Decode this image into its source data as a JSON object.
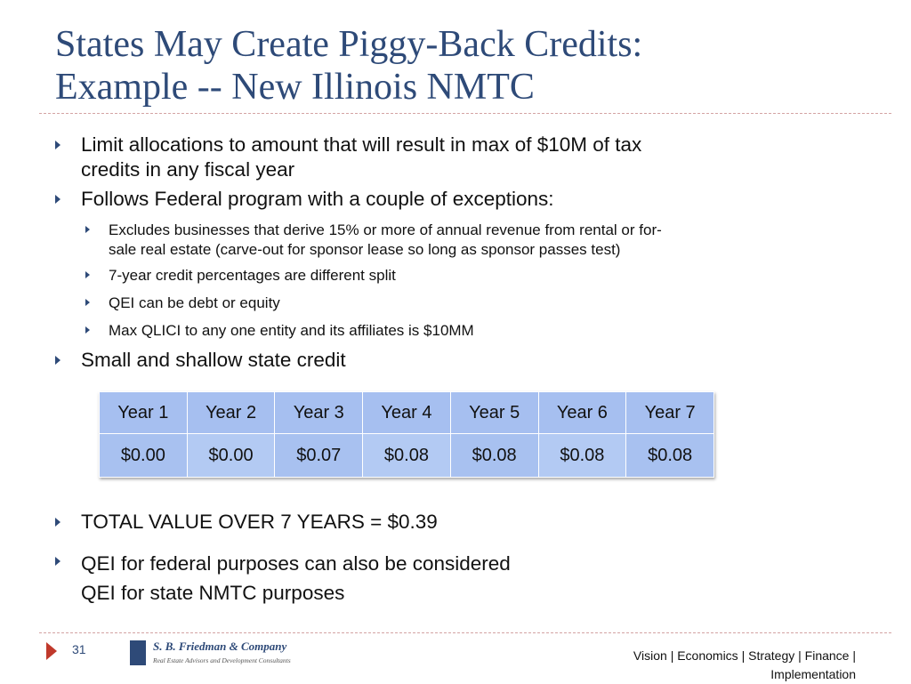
{
  "slide": {
    "title_lines": [
      "States May Create Piggy-Back Credits:",
      "Example -- New Illinois NMTC"
    ],
    "bullets": {
      "b1": [
        "Limit allocations to amount that will result in max of $10M of tax",
        "credits in any fiscal year"
      ],
      "b2": "Follows Federal program with a couple of exceptions:",
      "b2_sub": {
        "s1": [
          "Excludes businesses that derive 15% or more of annual revenue from rental or for-",
          "sale real estate (carve-out for sponsor lease so long as sponsor passes test)"
        ],
        "s2": "7-year credit percentages are different split",
        "s3": "QEI can be debt or equity",
        "s4": "Max QLICI to any one entity and its affiliates is $10MM"
      },
      "b3": "Small and shallow state credit",
      "b4": "TOTAL VALUE OVER 7 YEARS = $0.39",
      "b5": [
        "QEI for federal purposes can also be considered",
        "QEI for state NMTC purposes"
      ]
    },
    "table": {
      "headers": [
        "Year 1",
        "Year 2",
        "Year 3",
        "Year 4",
        "Year 5",
        "Year 6",
        "Year 7"
      ],
      "values": [
        "$0.00",
        "$0.00",
        "$0.07",
        "$0.08",
        "$0.08",
        "$0.08",
        "$0.08"
      ]
    },
    "footer": {
      "page_number": "31",
      "logo_name": "S. B. Friedman & Company",
      "logo_sub": "Real Estate Advisors and Development Consultants",
      "tagline_lines": [
        "Vision | Economics | Strategy | Finance |",
        "Implementation"
      ]
    },
    "colors": {
      "title": "#2e4a78",
      "bullet_arrow": "#2e4a78",
      "footer_marker": "#c0392b",
      "table_fill": "#a6bff0"
    }
  }
}
